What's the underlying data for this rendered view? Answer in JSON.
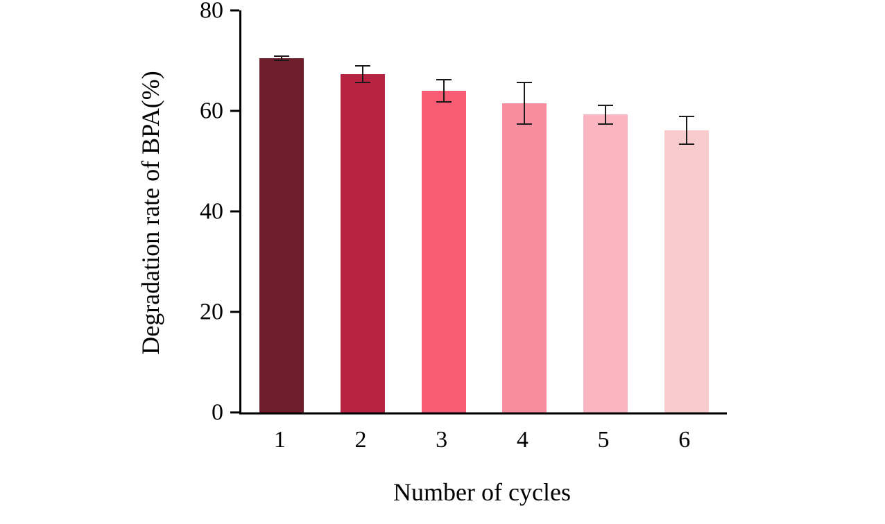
{
  "chart_data": {
    "type": "bar",
    "categories": [
      "1",
      "2",
      "3",
      "4",
      "5",
      "6"
    ],
    "values": [
      70.5,
      67.3,
      64.0,
      61.5,
      59.3,
      56.2
    ],
    "errors": [
      0.6,
      1.8,
      2.4,
      4.3,
      2.0,
      2.9
    ],
    "bar_colors": [
      "#6e1f2b",
      "#b72441",
      "#f85c74",
      "#f88da0",
      "#fab5c1",
      "#f8cbcd"
    ],
    "error_color": "#1a1a1a",
    "title": "",
    "xlabel": "Number of cycles",
    "ylabel": "Degradation rate of BPA(%)",
    "ylim": [
      0,
      80
    ],
    "yticks": [
      0,
      20,
      40,
      60,
      80
    ],
    "grid": false,
    "legend": null
  }
}
